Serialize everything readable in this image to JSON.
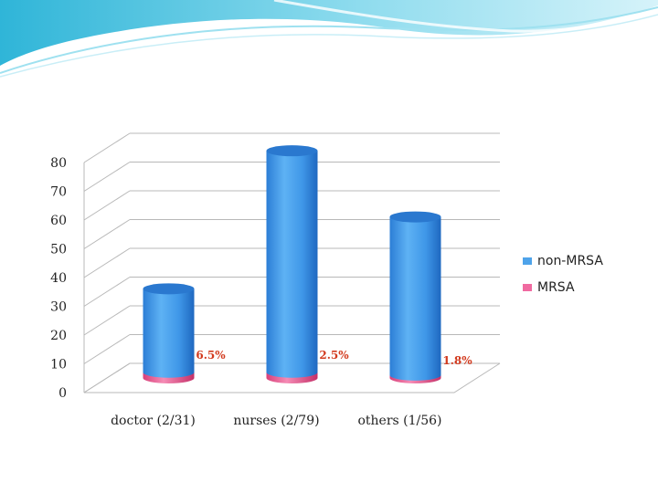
{
  "slide": {
    "banner_colors": [
      "#2fb5d8",
      "#8fdcee",
      "#d6f3fa"
    ]
  },
  "chart_data": {
    "type": "bar",
    "style": "3d-cylinder-stacked",
    "title": "",
    "xlabel": "",
    "ylabel": "",
    "ylim": [
      0,
      80
    ],
    "yticks": [
      0,
      10,
      20,
      30,
      40,
      50,
      60,
      70,
      80
    ],
    "grid": true,
    "legend_position": "right",
    "categories": [
      "doctor (2/31)",
      "nurses (2/79)",
      "others (1/56)"
    ],
    "series": [
      {
        "name": "non-MRSA",
        "color": "#4ea3ea",
        "values": [
          29,
          77,
          55
        ]
      },
      {
        "name": "MRSA",
        "color": "#f06aa0",
        "values": [
          2,
          2,
          1
        ]
      }
    ],
    "annotations": [
      {
        "category": "doctor (2/31)",
        "text": "6.5%"
      },
      {
        "category": "nurses (2/79)",
        "text": "2.5%"
      },
      {
        "category": "others (1/56)",
        "text": "1.8%"
      }
    ],
    "annotation_color": "#d23a1e"
  }
}
